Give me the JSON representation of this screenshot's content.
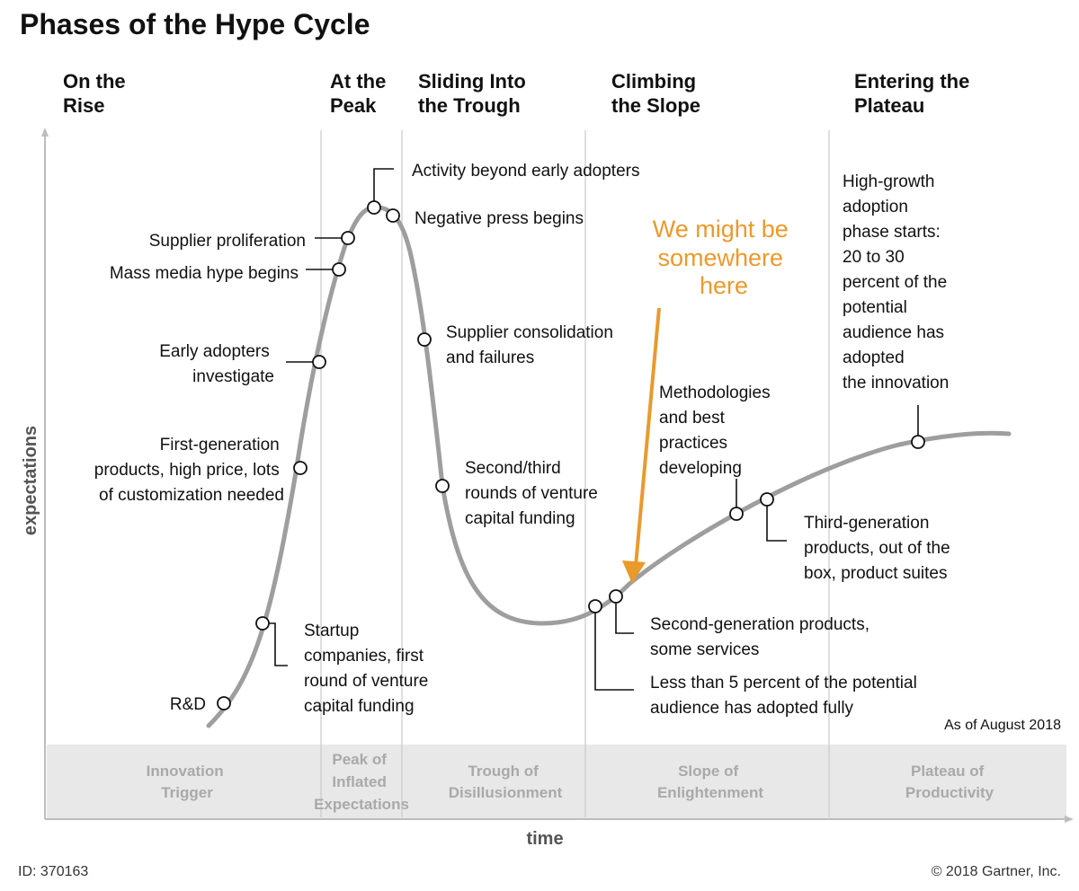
{
  "title": "Phases of the Hype Cycle",
  "phases": [
    {
      "lines": [
        "On the",
        "Rise"
      ]
    },
    {
      "lines": [
        "At the",
        "Peak"
      ]
    },
    {
      "lines": [
        "Sliding Into",
        "the Trough"
      ]
    },
    {
      "lines": [
        "Climbing",
        "the Slope"
      ]
    },
    {
      "lines": [
        "Entering the",
        "Plateau"
      ]
    }
  ],
  "bands": [
    {
      "lines": [
        "Innovation",
        "Trigger"
      ]
    },
    {
      "lines": [
        "Peak of",
        "Inflated",
        "Expectations"
      ]
    },
    {
      "lines": [
        "Trough of",
        "Disillusionment"
      ]
    },
    {
      "lines": [
        "Slope of",
        "Enlightenment"
      ]
    },
    {
      "lines": [
        "Plateau of",
        "Productivity"
      ]
    }
  ],
  "annotations": [
    {
      "lines": [
        "R&D"
      ]
    },
    {
      "lines": [
        "Startup",
        "companies, first",
        "round of venture",
        "capital funding"
      ]
    },
    {
      "lines": [
        "First-generation",
        "products, high price, lots",
        "of customization needed"
      ]
    },
    {
      "lines": [
        "Early adopters",
        "investigate"
      ]
    },
    {
      "lines": [
        "Mass media hype begins"
      ]
    },
    {
      "lines": [
        "Supplier proliferation"
      ]
    },
    {
      "lines": [
        "Activity beyond early adopters"
      ]
    },
    {
      "lines": [
        "Negative press begins"
      ]
    },
    {
      "lines": [
        "Supplier consolidation",
        "and failures"
      ]
    },
    {
      "lines": [
        "Second/third",
        "rounds of venture",
        "capital funding"
      ]
    },
    {
      "lines": [
        "Less than 5 percent of the potential",
        "audience has adopted fully"
      ]
    },
    {
      "lines": [
        "Second-generation products,",
        "some services"
      ]
    },
    {
      "lines": [
        "Methodologies",
        "and best",
        "practices",
        "developing"
      ]
    },
    {
      "lines": [
        "Third-generation",
        "products, out of the",
        "box, product suites"
      ]
    },
    {
      "lines": [
        "High-growth",
        "adoption",
        "phase starts:",
        "20 to 30",
        "percent of the",
        "potential",
        "audience has",
        "adopted",
        "the innovation"
      ]
    }
  ],
  "highlight": {
    "lines": [
      "We might be",
      "somewhere",
      "here"
    ],
    "color": "#e99a2c"
  },
  "axes": {
    "y_label": "expectations",
    "x_label": "time"
  },
  "as_of": "As of August 2018",
  "footer": {
    "id": "ID: 370163",
    "copyright": "© 2018 Gartner, Inc."
  },
  "colors": {
    "curve": "#9e9e9e",
    "band_bg": "#e8e8e8",
    "band_text": "#a9a9a9",
    "highlight": "#e99a2c"
  }
}
